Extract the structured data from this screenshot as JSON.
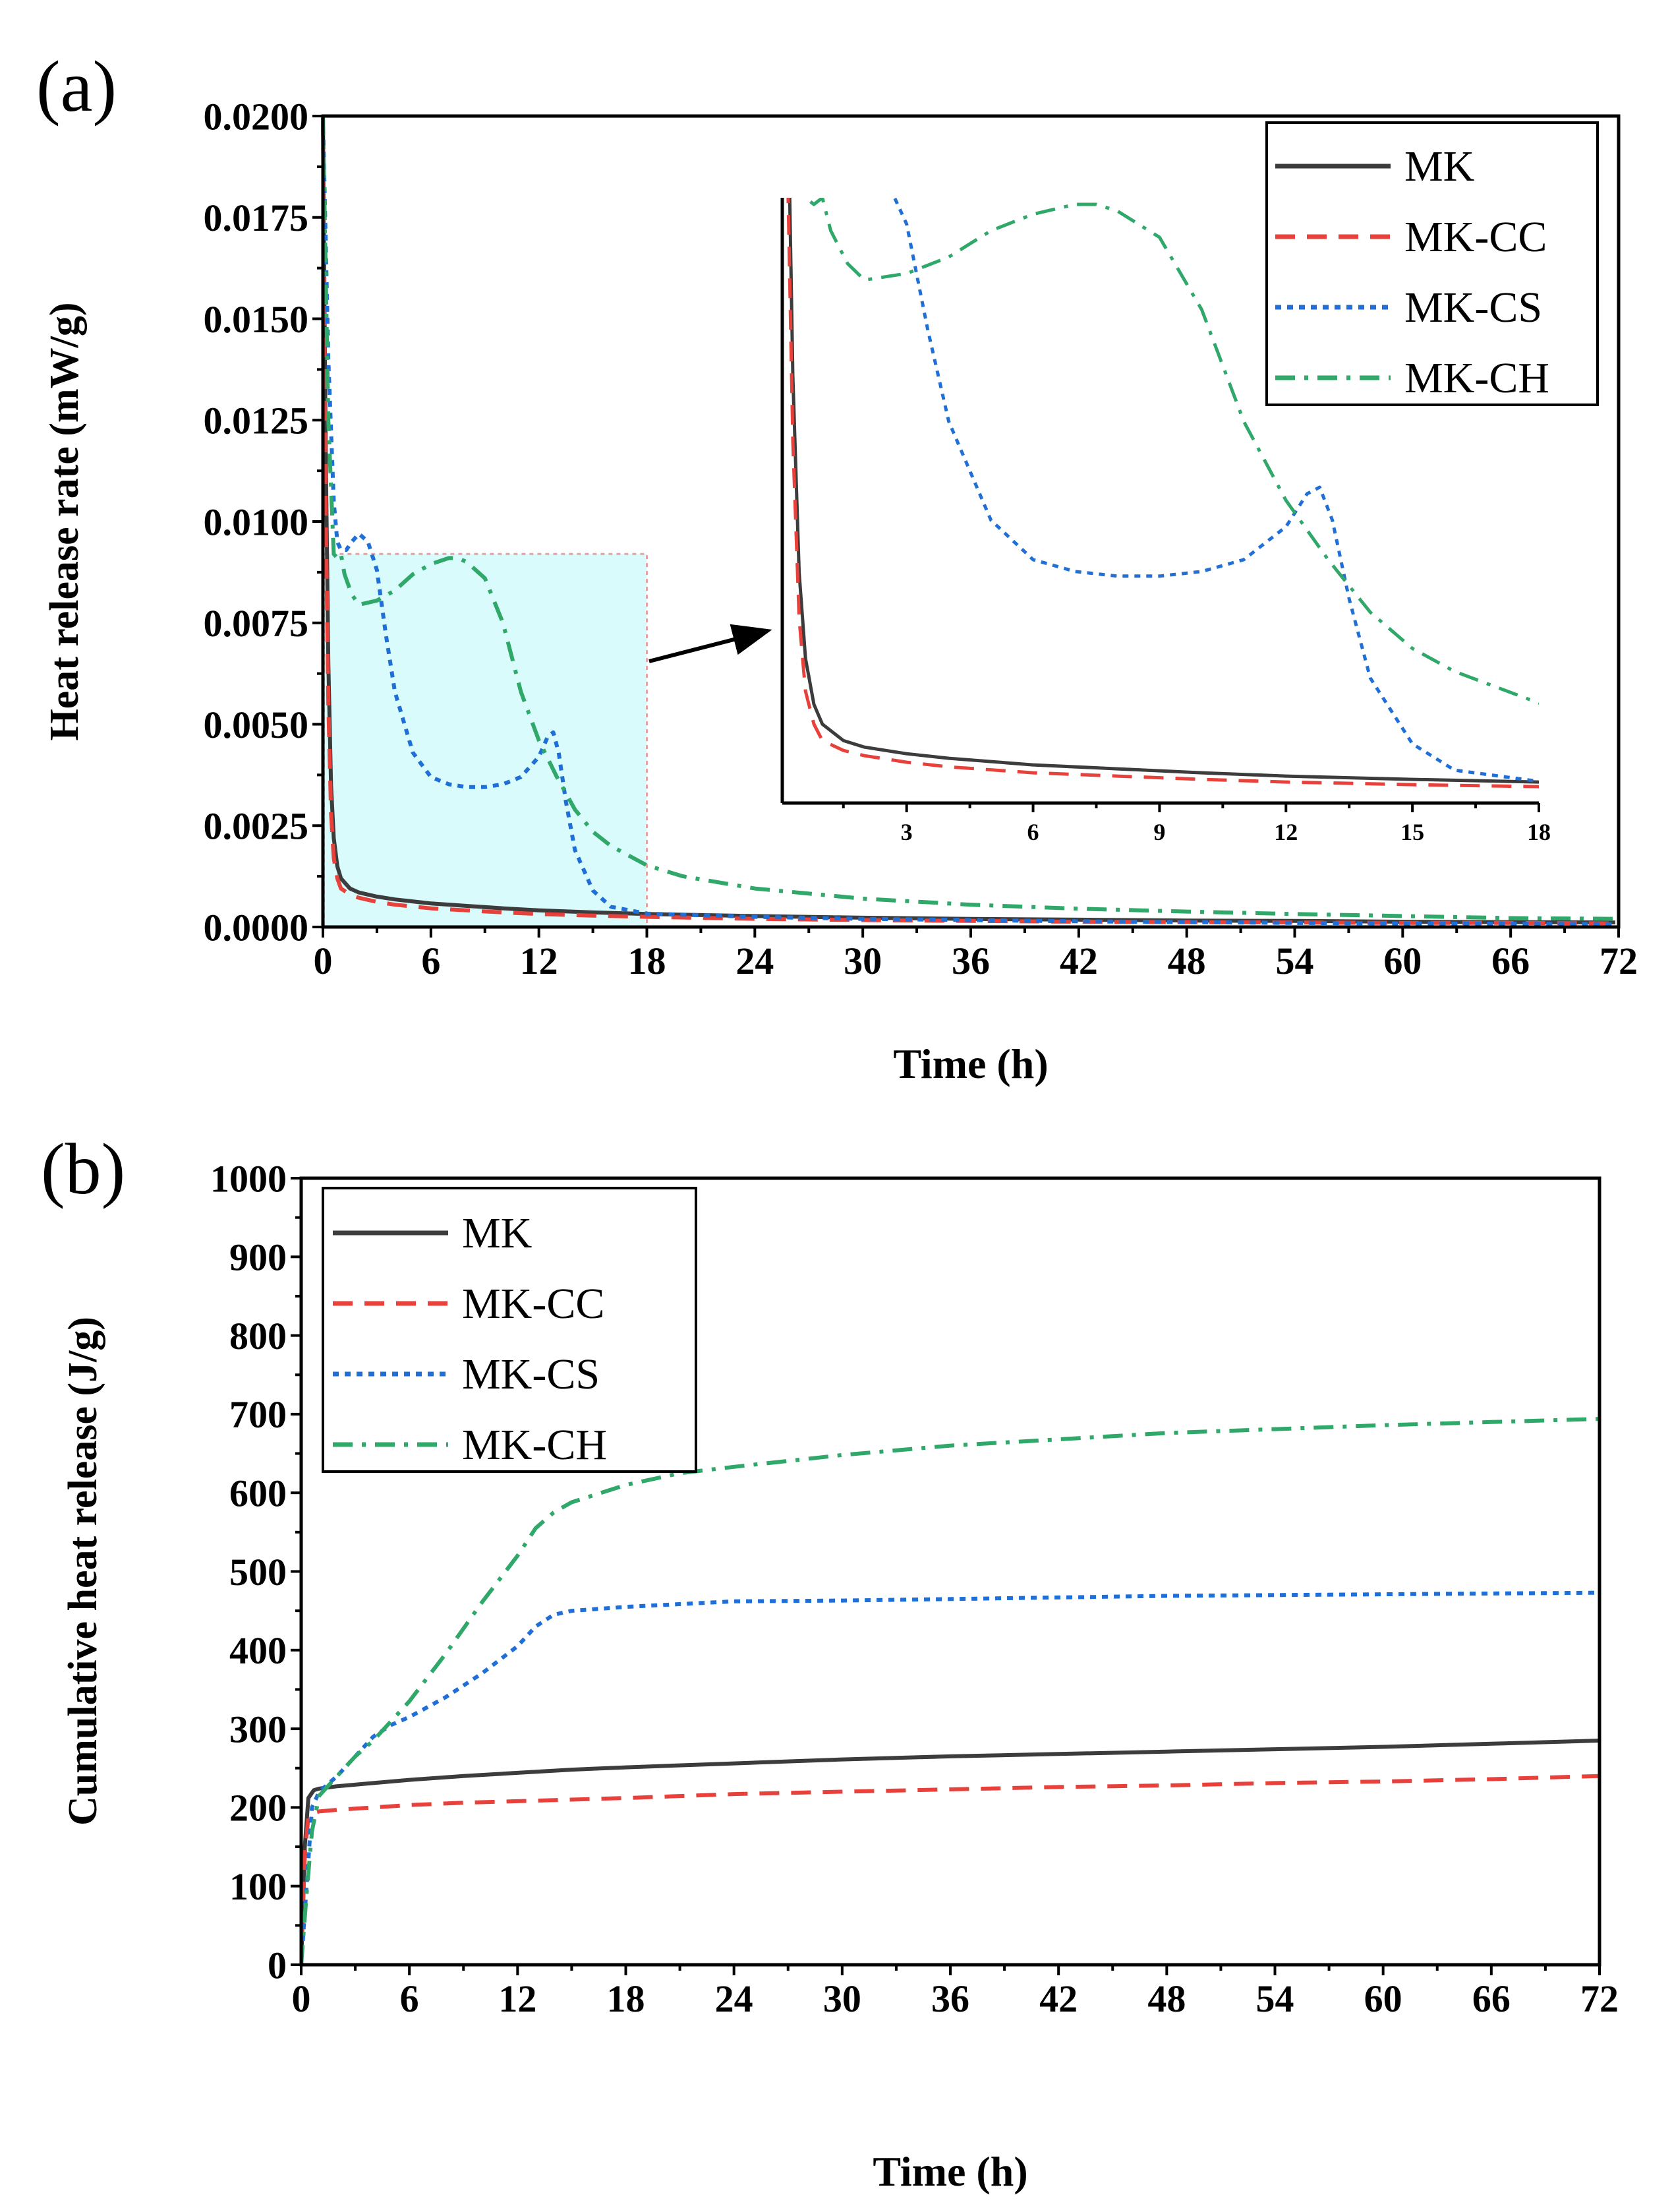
{
  "figure": {
    "panel_a_label": "(a)",
    "panel_b_label": "(b)"
  },
  "chart_data": [
    {
      "id": "a",
      "type": "line",
      "title": "",
      "xlabel": "Time (h)",
      "ylabel": "Heat release rate (mW/g)",
      "xlim": [
        0,
        72
      ],
      "ylim": [
        0,
        0.02
      ],
      "xticks": [
        "0",
        "6",
        "12",
        "18",
        "24",
        "30",
        "36",
        "42",
        "48",
        "54",
        "60",
        "66",
        "72"
      ],
      "yticks": [
        "0.0000",
        "0.0025",
        "0.0050",
        "0.0075",
        "0.0100",
        "0.0125",
        "0.0150",
        "0.0175",
        "0.0200"
      ],
      "legend_position": "top-right",
      "series": [
        {
          "name": "MK",
          "color": "#3c3c3c",
          "dash": "solid",
          "x": [
            0,
            0.15,
            0.3,
            0.45,
            0.6,
            0.8,
            1.0,
            1.5,
            2,
            3,
            4,
            6,
            8,
            10,
            12,
            15,
            18,
            24,
            30,
            36,
            42,
            48,
            54,
            60,
            66,
            72
          ],
          "y": [
            0.02,
            0.012,
            0.0065,
            0.0035,
            0.0022,
            0.0015,
            0.0012,
            0.00095,
            0.00085,
            0.00075,
            0.00068,
            0.00058,
            0.00052,
            0.00046,
            0.00041,
            0.00036,
            0.00032,
            0.00027,
            0.00023,
            0.0002,
            0.00018,
            0.00016,
            0.00015,
            0.00013,
            0.00012,
            0.00011
          ]
        },
        {
          "name": "MK-CC",
          "color": "#e8413b",
          "dash": "dashed",
          "x": [
            0,
            0.15,
            0.3,
            0.45,
            0.6,
            0.8,
            1.0,
            1.5,
            2,
            3,
            4,
            6,
            8,
            10,
            12,
            15,
            18,
            24,
            30,
            36,
            42,
            48,
            54,
            60,
            66,
            72
          ],
          "y": [
            0.02,
            0.0105,
            0.0055,
            0.0028,
            0.0017,
            0.0012,
            0.00095,
            0.0008,
            0.00072,
            0.00062,
            0.00055,
            0.00046,
            0.00041,
            0.00036,
            0.00032,
            0.00028,
            0.00025,
            0.0002,
            0.00017,
            0.00015,
            0.00013,
            0.00012,
            0.00011,
            0.0001,
            0.0001,
            9e-05
          ]
        },
        {
          "name": "MK-CS",
          "color": "#1f6fd6",
          "dash": "dotted",
          "x": [
            0,
            0.3,
            0.6,
            0.8,
            1.0,
            1.3,
            1.6,
            2,
            2.5,
            3,
            3.5,
            4,
            5,
            6,
            7,
            8,
            9,
            10,
            11,
            12,
            12.5,
            12.8,
            13.1,
            13.5,
            14,
            15,
            16,
            18,
            24,
            30,
            36,
            42,
            48,
            54,
            60,
            66,
            72
          ],
          "y": [
            0.02,
            0.014,
            0.0105,
            0.0095,
            0.0093,
            0.0093,
            0.0095,
            0.0097,
            0.0095,
            0.0088,
            0.0072,
            0.0058,
            0.0043,
            0.0037,
            0.00352,
            0.00345,
            0.00345,
            0.00352,
            0.0037,
            0.0042,
            0.0047,
            0.0048,
            0.0043,
            0.0031,
            0.0019,
            0.0009,
            0.0005,
            0.00033,
            0.00025,
            0.0002,
            0.00017,
            0.00014,
            0.00012,
            0.0001,
            9e-05,
            8e-05,
            7e-05
          ]
        },
        {
          "name": "MK-CH",
          "color": "#2fa86a",
          "dash": "dashdot",
          "x": [
            0,
            0.3,
            0.6,
            0.8,
            1.0,
            1.2,
            1.6,
            2,
            3,
            4,
            5,
            6,
            7,
            7.5,
            8,
            9,
            10,
            11,
            12,
            13,
            14,
            15,
            16,
            18,
            20,
            24,
            30,
            36,
            42,
            48,
            54,
            60,
            66,
            72
          ],
          "y": [
            0.02,
            0.0125,
            0.0092,
            0.0091,
            0.0092,
            0.0087,
            0.0082,
            0.00795,
            0.00805,
            0.0083,
            0.0087,
            0.00895,
            0.0091,
            0.0091,
            0.009,
            0.0086,
            0.0075,
            0.0058,
            0.0046,
            0.0037,
            0.0029,
            0.00235,
            0.002,
            0.00152,
            0.00125,
            0.00095,
            0.0007,
            0.00055,
            0.00045,
            0.00038,
            0.00032,
            0.00027,
            0.00022,
            0.0002
          ]
        }
      ]
    },
    {
      "id": "a-inset",
      "type": "line",
      "title": "",
      "xlabel": "",
      "ylabel": "",
      "xlim": [
        0.05,
        18
      ],
      "ylim": [
        0,
        0.0092
      ],
      "xticks": [
        "3",
        "6",
        "9",
        "12",
        "15",
        "18"
      ],
      "series_ref": "a"
    },
    {
      "id": "b",
      "type": "line",
      "title": "",
      "xlabel": "Time (h)",
      "ylabel": "Cumulative heat release (J/g)",
      "xlim": [
        0,
        72
      ],
      "ylim": [
        0,
        1000
      ],
      "xticks": [
        "0",
        "6",
        "12",
        "18",
        "24",
        "30",
        "36",
        "42",
        "48",
        "54",
        "60",
        "66",
        "72"
      ],
      "yticks": [
        "0",
        "100",
        "200",
        "300",
        "400",
        "500",
        "600",
        "700",
        "800",
        "900",
        "1000"
      ],
      "legend_position": "top-left",
      "series": [
        {
          "name": "MK",
          "color": "#3c3c3c",
          "dash": "solid",
          "x": [
            0,
            0.2,
            0.4,
            0.7,
            1.0,
            2,
            4,
            6,
            9,
            12,
            15,
            18,
            24,
            30,
            36,
            42,
            48,
            54,
            60,
            66,
            72
          ],
          "y": [
            0,
            150,
            212,
            222,
            224,
            227,
            231,
            235,
            240,
            244,
            248,
            251,
            256,
            261,
            265,
            268,
            271,
            274,
            277,
            281,
            285
          ]
        },
        {
          "name": "MK-CC",
          "color": "#e8413b",
          "dash": "dashed",
          "x": [
            0,
            0.2,
            0.4,
            0.7,
            1.0,
            2,
            4,
            6,
            9,
            12,
            15,
            18,
            24,
            30,
            36,
            42,
            48,
            54,
            60,
            66,
            72
          ],
          "y": [
            0,
            140,
            188,
            193,
            195,
            197,
            200,
            203,
            206,
            208,
            210,
            212,
            217,
            220,
            223,
            226,
            228,
            231,
            233,
            236,
            240
          ]
        },
        {
          "name": "MK-CS",
          "color": "#1f6fd6",
          "dash": "dotted",
          "x": [
            0,
            0.3,
            0.6,
            1.0,
            2,
            3,
            4,
            5,
            6,
            8,
            10,
            12,
            13,
            14,
            15,
            18,
            24,
            30,
            36,
            42,
            48,
            54,
            60,
            66,
            72
          ],
          "y": [
            0,
            100,
            200,
            220,
            240,
            265,
            290,
            305,
            315,
            340,
            370,
            405,
            430,
            445,
            450,
            455,
            462,
            463,
            465,
            467,
            469,
            470,
            471,
            472,
            473
          ]
        },
        {
          "name": "MK-CH",
          "color": "#2fa86a",
          "dash": "dashdot",
          "x": [
            0,
            0.3,
            0.6,
            1.0,
            2,
            3,
            4,
            5,
            6,
            8,
            10,
            12,
            13,
            14,
            15,
            18,
            21,
            24,
            30,
            36,
            42,
            48,
            54,
            60,
            66,
            72
          ],
          "y": [
            0,
            90,
            170,
            215,
            240,
            265,
            285,
            310,
            335,
            395,
            460,
            520,
            555,
            575,
            588,
            610,
            625,
            633,
            648,
            660,
            668,
            676,
            681,
            686,
            690,
            694
          ]
        }
      ]
    }
  ]
}
